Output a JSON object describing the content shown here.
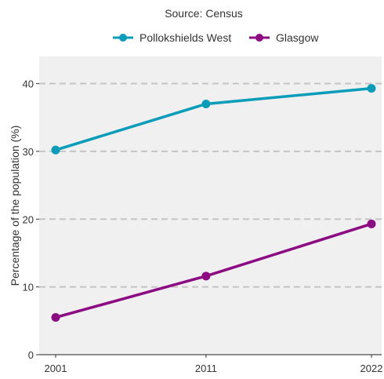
{
  "chart_data": {
    "type": "line",
    "subtitle": "Source: Census",
    "xlabel": "",
    "ylabel": "Percentage of the population (%)",
    "x": [
      "2001",
      "2011",
      "2022"
    ],
    "x_values": [
      2001,
      2011,
      2022
    ],
    "xlim": [
      2001,
      2022
    ],
    "ylim": [
      0,
      44
    ],
    "yticks": [
      0,
      10,
      20,
      30,
      40
    ],
    "grid": "horizontal dashed",
    "legend_position": "top",
    "series": [
      {
        "name": "Pollokshields West",
        "color": "#0a9dba",
        "values": [
          30.2,
          37.0,
          39.3
        ]
      },
      {
        "name": "Glasgow",
        "color": "#8c0a82",
        "values": [
          5.5,
          11.6,
          19.3
        ]
      }
    ]
  }
}
